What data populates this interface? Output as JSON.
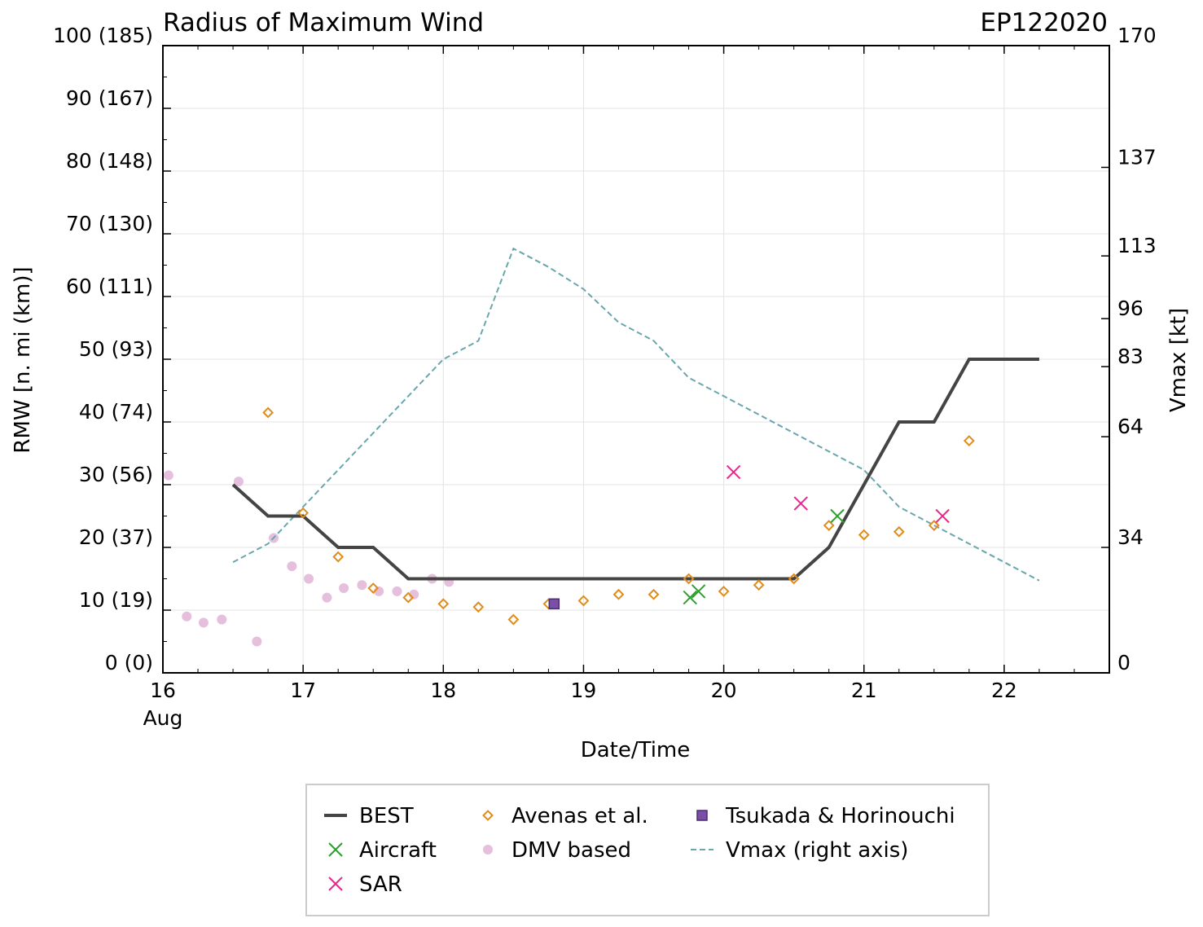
{
  "chart_data": {
    "type": "line",
    "title": "Radius of Maximum Wind",
    "storm_id": "EP122020",
    "xlabel": "Date/Time",
    "ylabel": "RMW [n. mi (km)]",
    "ylabel_right": "Vmax [kt]",
    "x_unit": "days since 16 Aug 00Z",
    "xlim": [
      0,
      6.75
    ],
    "ylim": [
      0,
      100
    ],
    "ylim_right": [
      0,
      170
    ],
    "x_ticks": [
      {
        "value": 0,
        "label": "16",
        "sublabel": "Aug"
      },
      {
        "value": 1,
        "label": "17"
      },
      {
        "value": 2,
        "label": "18"
      },
      {
        "value": 3,
        "label": "19"
      },
      {
        "value": 4,
        "label": "20"
      },
      {
        "value": 5,
        "label": "21"
      },
      {
        "value": 6,
        "label": "22"
      }
    ],
    "y_ticks": [
      {
        "value": 0,
        "label": "0 (0)"
      },
      {
        "value": 10,
        "label": "10 (19)"
      },
      {
        "value": 20,
        "label": "20 (37)"
      },
      {
        "value": 30,
        "label": "30 (56)"
      },
      {
        "value": 40,
        "label": "40 (74)"
      },
      {
        "value": 50,
        "label": "50 (93)"
      },
      {
        "value": 60,
        "label": "60 (111)"
      },
      {
        "value": 70,
        "label": "70 (130)"
      },
      {
        "value": 80,
        "label": "80 (148)"
      },
      {
        "value": 90,
        "label": "90 (167)"
      },
      {
        "value": 100,
        "label": "100 (185)"
      }
    ],
    "y_ticks_right": [
      {
        "value": 0,
        "label": "0"
      },
      {
        "value": 34,
        "label": "34"
      },
      {
        "value": 64,
        "label": "64"
      },
      {
        "value": 83,
        "label": "83"
      },
      {
        "value": 96,
        "label": "96"
      },
      {
        "value": 113,
        "label": "113"
      },
      {
        "value": 137,
        "label": "137"
      },
      {
        "value": 170,
        "label": "170"
      }
    ],
    "series": [
      {
        "name": "BEST",
        "label": "BEST",
        "kind": "line",
        "color": "#444444",
        "x": [
          0.5,
          0.75,
          1.0,
          1.25,
          1.5,
          1.75,
          2.0,
          2.25,
          2.5,
          2.75,
          3.0,
          3.25,
          3.5,
          3.75,
          4.0,
          4.25,
          4.5,
          4.75,
          5.0,
          5.25,
          5.5,
          5.75,
          6.0,
          6.25
        ],
        "y": [
          30,
          25,
          25,
          20,
          20,
          15,
          15,
          15,
          15,
          15,
          15,
          15,
          15,
          15,
          15,
          15,
          15,
          20,
          30,
          40,
          40,
          50,
          50,
          50
        ]
      },
      {
        "name": "Aircraft",
        "label": "Aircraft",
        "kind": "x-marker",
        "color": "#2ca02c",
        "x": [
          3.76,
          3.82,
          4.81
        ],
        "y": [
          12,
          13,
          25
        ]
      },
      {
        "name": "SAR",
        "label": "SAR",
        "kind": "x-marker",
        "color": "#e7298a",
        "x": [
          4.07,
          4.55,
          5.56
        ],
        "y": [
          32,
          27,
          25
        ]
      },
      {
        "name": "Avenas et al.",
        "label": "Avenas et al.",
        "kind": "diamond",
        "color": "#e08c1a",
        "x": [
          0.75,
          1.0,
          1.25,
          1.5,
          1.75,
          2.0,
          2.25,
          2.5,
          2.75,
          3.0,
          3.25,
          3.5,
          3.75,
          4.0,
          4.25,
          4.5,
          4.75,
          5.0,
          5.25,
          5.5,
          5.75
        ],
        "y": [
          41.5,
          25.5,
          18.5,
          13.5,
          12.0,
          11.0,
          10.5,
          8.5,
          11.0,
          11.5,
          12.5,
          12.5,
          15.0,
          13.0,
          14.0,
          15.0,
          23.5,
          22.0,
          22.5,
          23.5,
          37.0
        ]
      },
      {
        "name": "DMV based",
        "label": "DMV based",
        "kind": "dot",
        "color": "#e5bfdc",
        "x": [
          0.04,
          0.17,
          0.29,
          0.42,
          0.54,
          0.67,
          0.79,
          0.92,
          1.04,
          1.17,
          1.29,
          1.42,
          1.54,
          1.67,
          1.79,
          1.92,
          2.04
        ],
        "y": [
          31.5,
          9.0,
          8.0,
          8.5,
          30.5,
          5.0,
          21.5,
          17.0,
          15.0,
          12.0,
          13.5,
          14.0,
          13.0,
          13.0,
          12.5,
          15.0,
          14.5
        ]
      },
      {
        "name": "Tsukada & Horinouchi",
        "label": "Tsukada & Horinouchi",
        "kind": "square",
        "color": "#7b4fa8",
        "x": [
          2.79
        ],
        "y": [
          11.0
        ]
      },
      {
        "name": "Vmax (right axis)",
        "label": "Vmax (right axis)",
        "kind": "dashed-line",
        "color": "#6aa6ad",
        "axis": "right",
        "x": [
          0.5,
          0.75,
          1.0,
          1.25,
          1.5,
          1.75,
          2.0,
          2.25,
          2.5,
          2.75,
          3.0,
          3.25,
          3.5,
          3.75,
          4.0,
          4.25,
          4.5,
          4.75,
          5.0,
          5.25,
          5.5,
          5.75,
          6.0,
          6.25
        ],
        "y": [
          30,
          35,
          45,
          55,
          65,
          75,
          85,
          90,
          115,
          110,
          104,
          95,
          90,
          80,
          75,
          70,
          65,
          60,
          55,
          45,
          40,
          35,
          30,
          25
        ]
      }
    ],
    "legend": {
      "placement": "bottom-outside",
      "order": [
        "BEST",
        "Aircraft",
        "SAR",
        "Avenas et al.",
        "DMV based",
        "Tsukada & Horinouchi",
        "Vmax (right axis)"
      ]
    }
  }
}
